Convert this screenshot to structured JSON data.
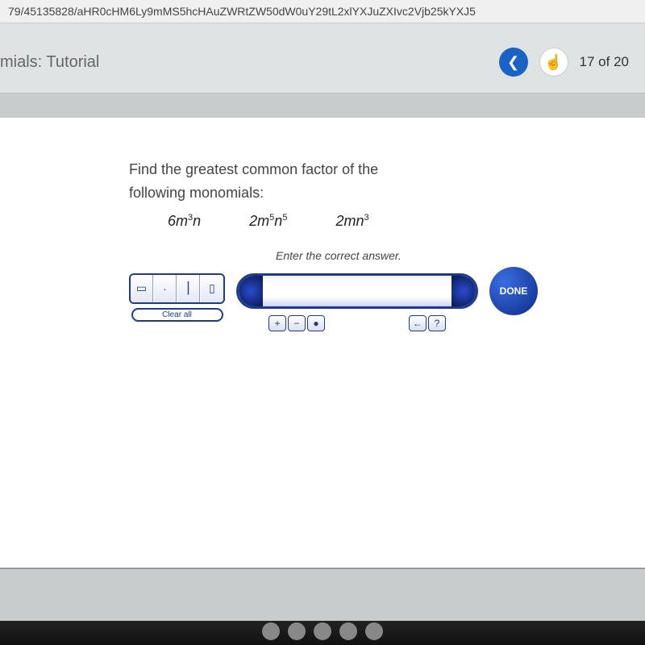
{
  "url_bar": "79/45135828/aHR0cHM6Ly9mMS5hcHAuZWRtZW50dW0uY29tL2xlYXJuZXIvc2Vjb25kYXJ5",
  "header": {
    "title": "mials: Tutorial",
    "page_current": 17,
    "page_total": 20,
    "page_text": "17  of  20"
  },
  "question": {
    "line1": "Find the greatest common factor of the",
    "line2": "following monomials:",
    "monomials": [
      {
        "coef": "6",
        "var1": "m",
        "exp1": "3",
        "var2": "n",
        "exp2": ""
      },
      {
        "coef": "2",
        "var1": "m",
        "exp1": "5",
        "var2": "n",
        "exp2": "5"
      },
      {
        "coef": "2",
        "var1": "m",
        "exp1": "",
        "var2": "n",
        "exp2": "3"
      }
    ],
    "hint": "Enter the correct answer."
  },
  "tools": {
    "icons": [
      "▭",
      "·",
      "⎮",
      "▯"
    ],
    "clear_all": "Clear all"
  },
  "under_buttons": {
    "left": [
      "+",
      "−",
      "●"
    ],
    "right": [
      "←",
      "?"
    ]
  },
  "done_label": "DONE",
  "colors": {
    "accent_blue": "#1d3b8a",
    "nav_blue": "#1a62c6",
    "page_bg": "#c8cccd",
    "content_bg": "#ffffff"
  }
}
